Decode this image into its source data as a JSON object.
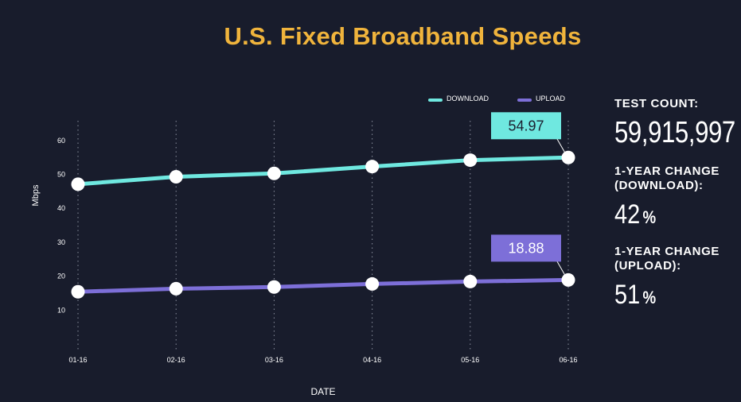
{
  "title": "U.S. Fixed Broadband Speeds",
  "stats": {
    "test_count_label": "TEST COUNT:",
    "test_count_value": "59,915,997",
    "download_change_label": "1-YEAR CHANGE\n(DOWNLOAD):",
    "download_change_value": "42",
    "upload_change_label": "1-YEAR CHANGE\n(UPLOAD):",
    "upload_change_value": "51",
    "percent_sign": "%"
  },
  "chart_data": {
    "type": "line",
    "xlabel": "DATE",
    "ylabel": "Mbps",
    "ylim": [
      0,
      65
    ],
    "yticks": [
      10,
      20,
      30,
      40,
      50,
      60
    ],
    "categories": [
      "01-16",
      "02-16",
      "03-16",
      "04-16",
      "05-16",
      "06-16"
    ],
    "grid": "vertical-dotted",
    "legend_position": "top-right",
    "series": [
      {
        "name": "DOWNLOAD",
        "color": "#6fe8e0",
        "values": [
          47.1,
          49.3,
          50.3,
          52.3,
          54.2,
          54.97
        ],
        "callout": "54.97"
      },
      {
        "name": "UPLOAD",
        "color": "#7d6fd8",
        "values": [
          15.4,
          16.3,
          16.8,
          17.7,
          18.4,
          18.88
        ],
        "callout": "18.88"
      }
    ]
  }
}
